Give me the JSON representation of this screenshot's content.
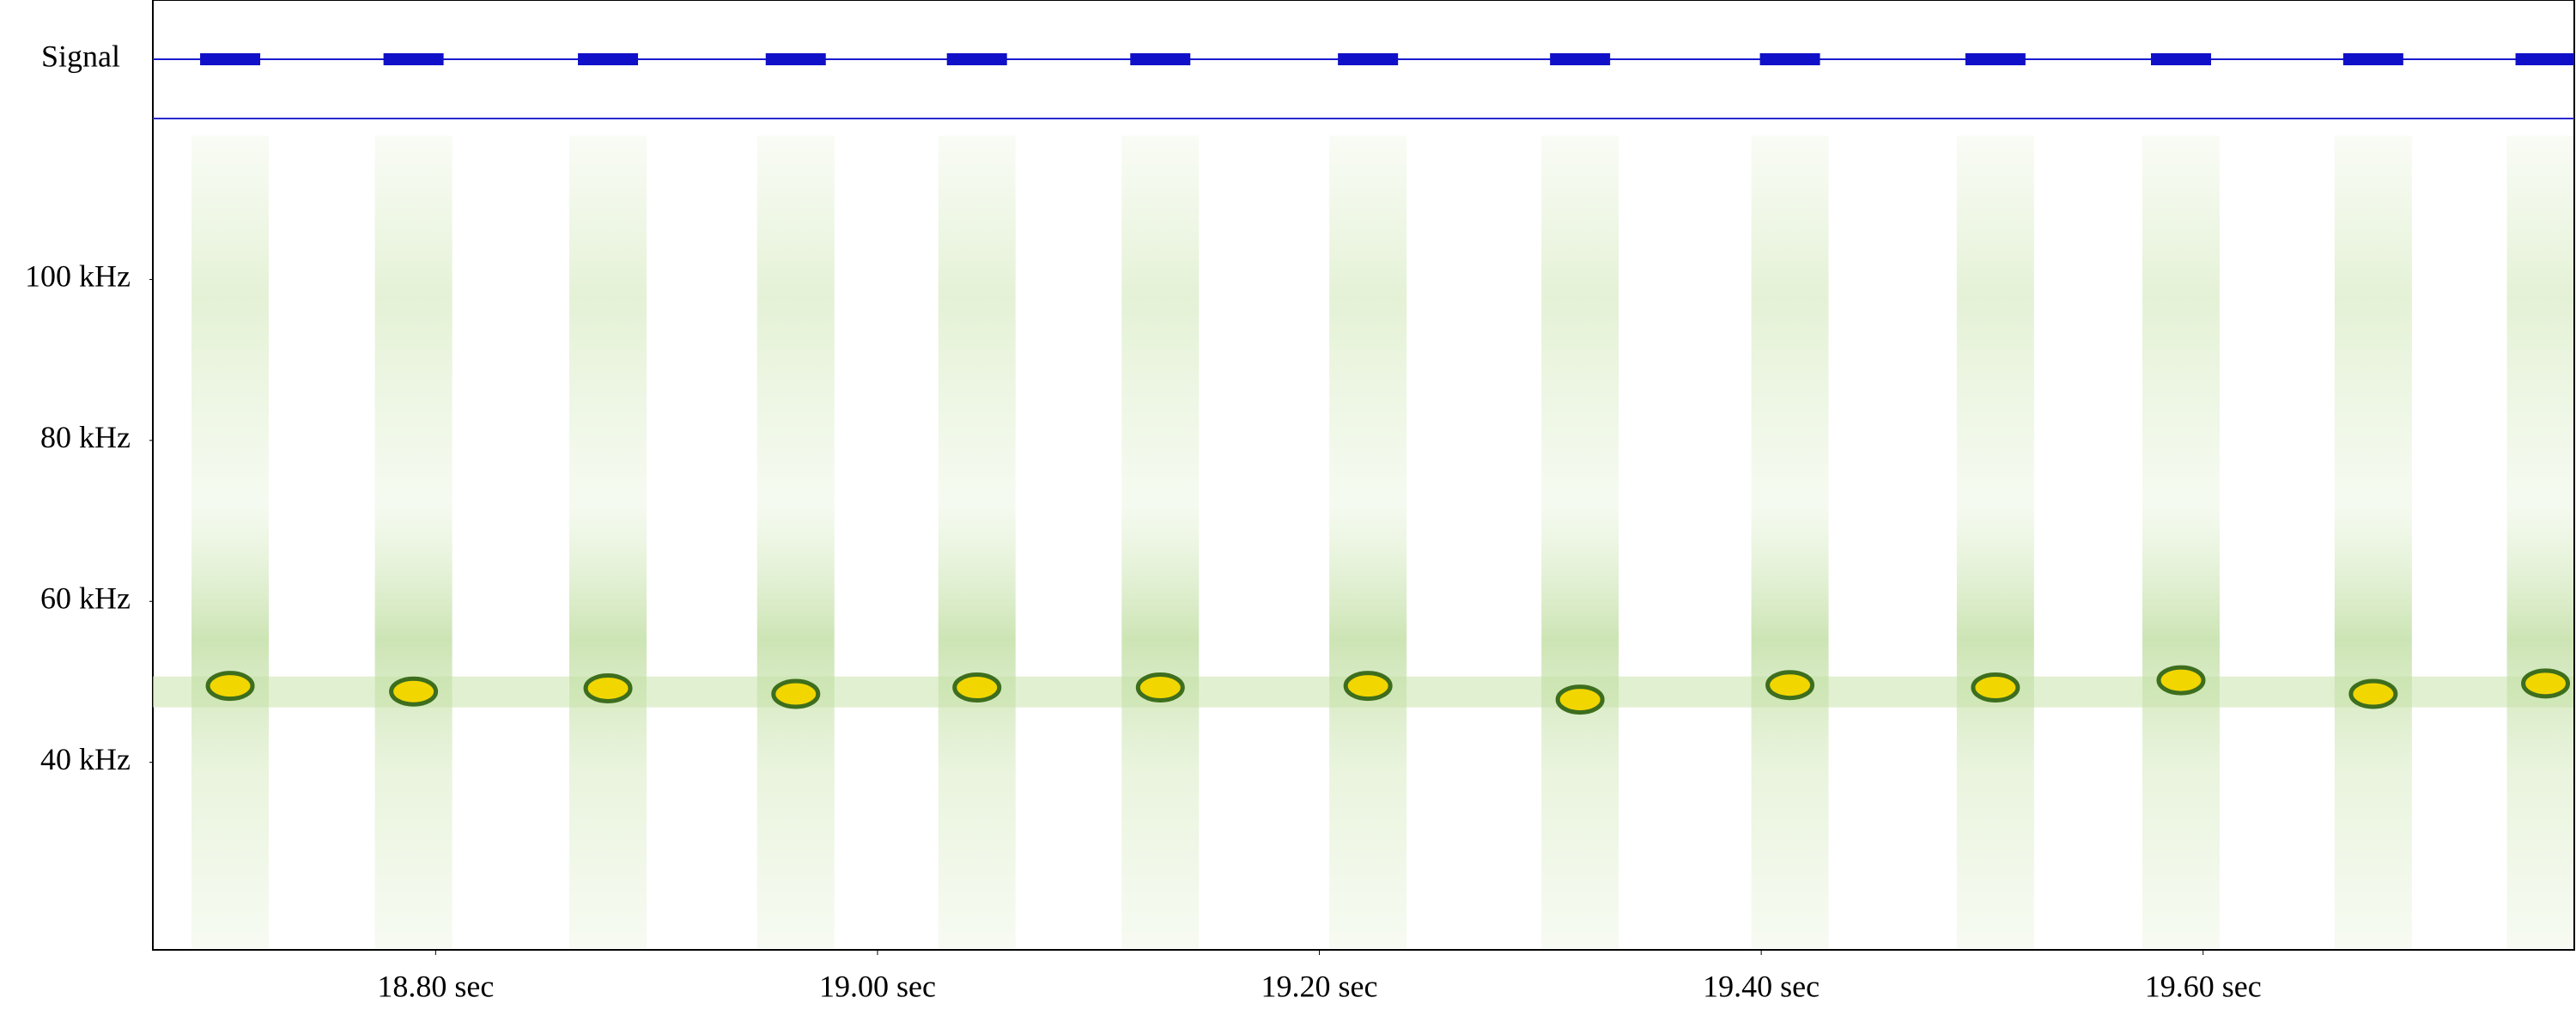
{
  "chart_data": {
    "type": "spectrogram",
    "panel_label": "Signal",
    "x": [
      18.707,
      18.79,
      18.878,
      18.963,
      19.045,
      19.128,
      19.222,
      19.318,
      19.413,
      19.506,
      19.59,
      19.677,
      19.755
    ],
    "values": [
      49.5,
      48.8,
      49.2,
      48.5,
      49.3,
      49.3,
      49.5,
      47.8,
      49.6,
      49.3,
      50.2,
      48.5,
      49.8
    ],
    "color": "#f2d600",
    "xlim": [
      18.672,
      19.768
    ],
    "ylim": [
      16.7,
      120
    ],
    "xticks": [
      {
        "value": 18.8,
        "label": "18.80 sec"
      },
      {
        "value": 19.0,
        "label": "19.00 sec"
      },
      {
        "value": 19.2,
        "label": "19.20 sec"
      },
      {
        "value": 19.4,
        "label": "19.40 sec"
      },
      {
        "value": 19.6,
        "label": "19.60 sec"
      }
    ],
    "yticks": [
      {
        "value": 40,
        "label": "40 kHz"
      },
      {
        "value": 60,
        "label": "60 kHz"
      },
      {
        "value": 80,
        "label": "80 kHz"
      },
      {
        "value": 100,
        "label": "100 kHz"
      }
    ]
  }
}
